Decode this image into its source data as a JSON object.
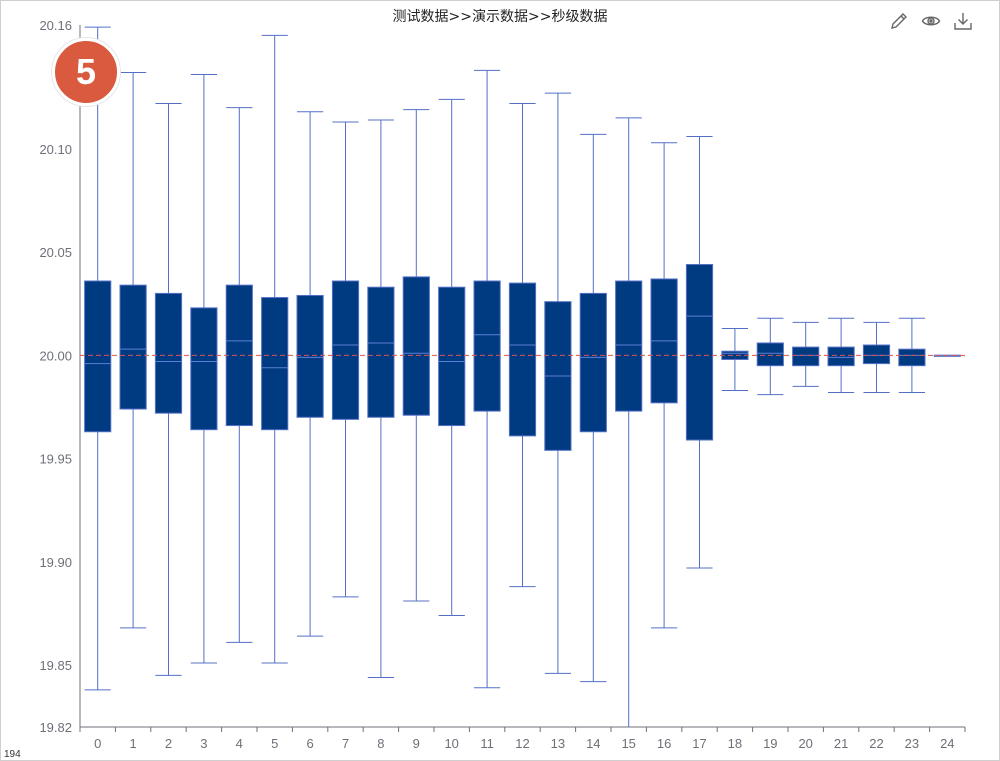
{
  "title": "测试数据>>演示数据>>秒级数据",
  "badge": "5",
  "corner_label": "194",
  "toolbox": [
    {
      "name": "edit-icon"
    },
    {
      "name": "view-icon"
    },
    {
      "name": "download-icon"
    }
  ],
  "colors": {
    "box_fill": "#003a80",
    "whisker": "#5470c6",
    "median": "#5b7fd6",
    "reference": "#e0524f",
    "axis": "#6e7079",
    "badge": "#d95a3e"
  },
  "chart_data": {
    "type": "boxplot",
    "title": "测试数据>>演示数据>>秒级数据",
    "xlabel": "",
    "ylabel": "",
    "ylim": [
      19.82,
      20.16
    ],
    "yticks": [
      "19.82",
      "19.85",
      "19.90",
      "19.95",
      "20.00",
      "20.05",
      "20.10",
      "20.16"
    ],
    "reference_line": 20.0,
    "categories": [
      "0",
      "1",
      "2",
      "3",
      "4",
      "5",
      "6",
      "7",
      "8",
      "9",
      "10",
      "11",
      "12",
      "13",
      "14",
      "15",
      "16",
      "17",
      "18",
      "19",
      "20",
      "21",
      "22",
      "23",
      "24"
    ],
    "boxes": [
      {
        "min": 19.838,
        "q1": 19.963,
        "median": 19.996,
        "q3": 20.036,
        "max": 20.159
      },
      {
        "min": 19.868,
        "q1": 19.974,
        "median": 20.003,
        "q3": 20.034,
        "max": 20.137
      },
      {
        "min": 19.845,
        "q1": 19.972,
        "median": 19.997,
        "q3": 20.03,
        "max": 20.122
      },
      {
        "min": 19.851,
        "q1": 19.964,
        "median": 19.997,
        "q3": 20.023,
        "max": 20.136
      },
      {
        "min": 19.861,
        "q1": 19.966,
        "median": 20.007,
        "q3": 20.034,
        "max": 20.12
      },
      {
        "min": 19.851,
        "q1": 19.964,
        "median": 19.994,
        "q3": 20.028,
        "max": 20.155
      },
      {
        "min": 19.864,
        "q1": 19.97,
        "median": 19.999,
        "q3": 20.029,
        "max": 20.118
      },
      {
        "min": 19.883,
        "q1": 19.969,
        "median": 20.005,
        "q3": 20.036,
        "max": 20.113
      },
      {
        "min": 19.844,
        "q1": 19.97,
        "median": 20.006,
        "q3": 20.033,
        "max": 20.114
      },
      {
        "min": 19.881,
        "q1": 19.971,
        "median": 20.001,
        "q3": 20.038,
        "max": 20.119
      },
      {
        "min": 19.874,
        "q1": 19.966,
        "median": 19.997,
        "q3": 20.033,
        "max": 20.124
      },
      {
        "min": 19.839,
        "q1": 19.973,
        "median": 20.01,
        "q3": 20.036,
        "max": 20.138
      },
      {
        "min": 19.888,
        "q1": 19.961,
        "median": 20.005,
        "q3": 20.035,
        "max": 20.122
      },
      {
        "min": 19.846,
        "q1": 19.954,
        "median": 19.99,
        "q3": 20.026,
        "max": 20.127
      },
      {
        "min": 19.842,
        "q1": 19.963,
        "median": 19.999,
        "q3": 20.03,
        "max": 20.107
      },
      {
        "min": 19.82,
        "q1": 19.973,
        "median": 20.005,
        "q3": 20.036,
        "max": 20.115
      },
      {
        "min": 19.868,
        "q1": 19.977,
        "median": 20.007,
        "q3": 20.037,
        "max": 20.103
      },
      {
        "min": 19.897,
        "q1": 19.959,
        "median": 20.019,
        "q3": 20.044,
        "max": 20.106
      },
      {
        "min": 19.983,
        "q1": 19.998,
        "median": 20.001,
        "q3": 20.002,
        "max": 20.013
      },
      {
        "min": 19.981,
        "q1": 19.995,
        "median": 20.001,
        "q3": 20.006,
        "max": 20.018
      },
      {
        "min": 19.985,
        "q1": 19.995,
        "median": 20.0,
        "q3": 20.004,
        "max": 20.016
      },
      {
        "min": 19.982,
        "q1": 19.995,
        "median": 19.999,
        "q3": 20.004,
        "max": 20.018
      },
      {
        "min": 19.982,
        "q1": 19.996,
        "median": 20.0,
        "q3": 20.005,
        "max": 20.016
      },
      {
        "min": 19.982,
        "q1": 19.995,
        "median": 20.0,
        "q3": 20.003,
        "max": 20.018
      },
      {
        "min": 20.0,
        "q1": 20.0,
        "median": 20.0,
        "q3": 20.0,
        "max": 20.0
      }
    ]
  }
}
